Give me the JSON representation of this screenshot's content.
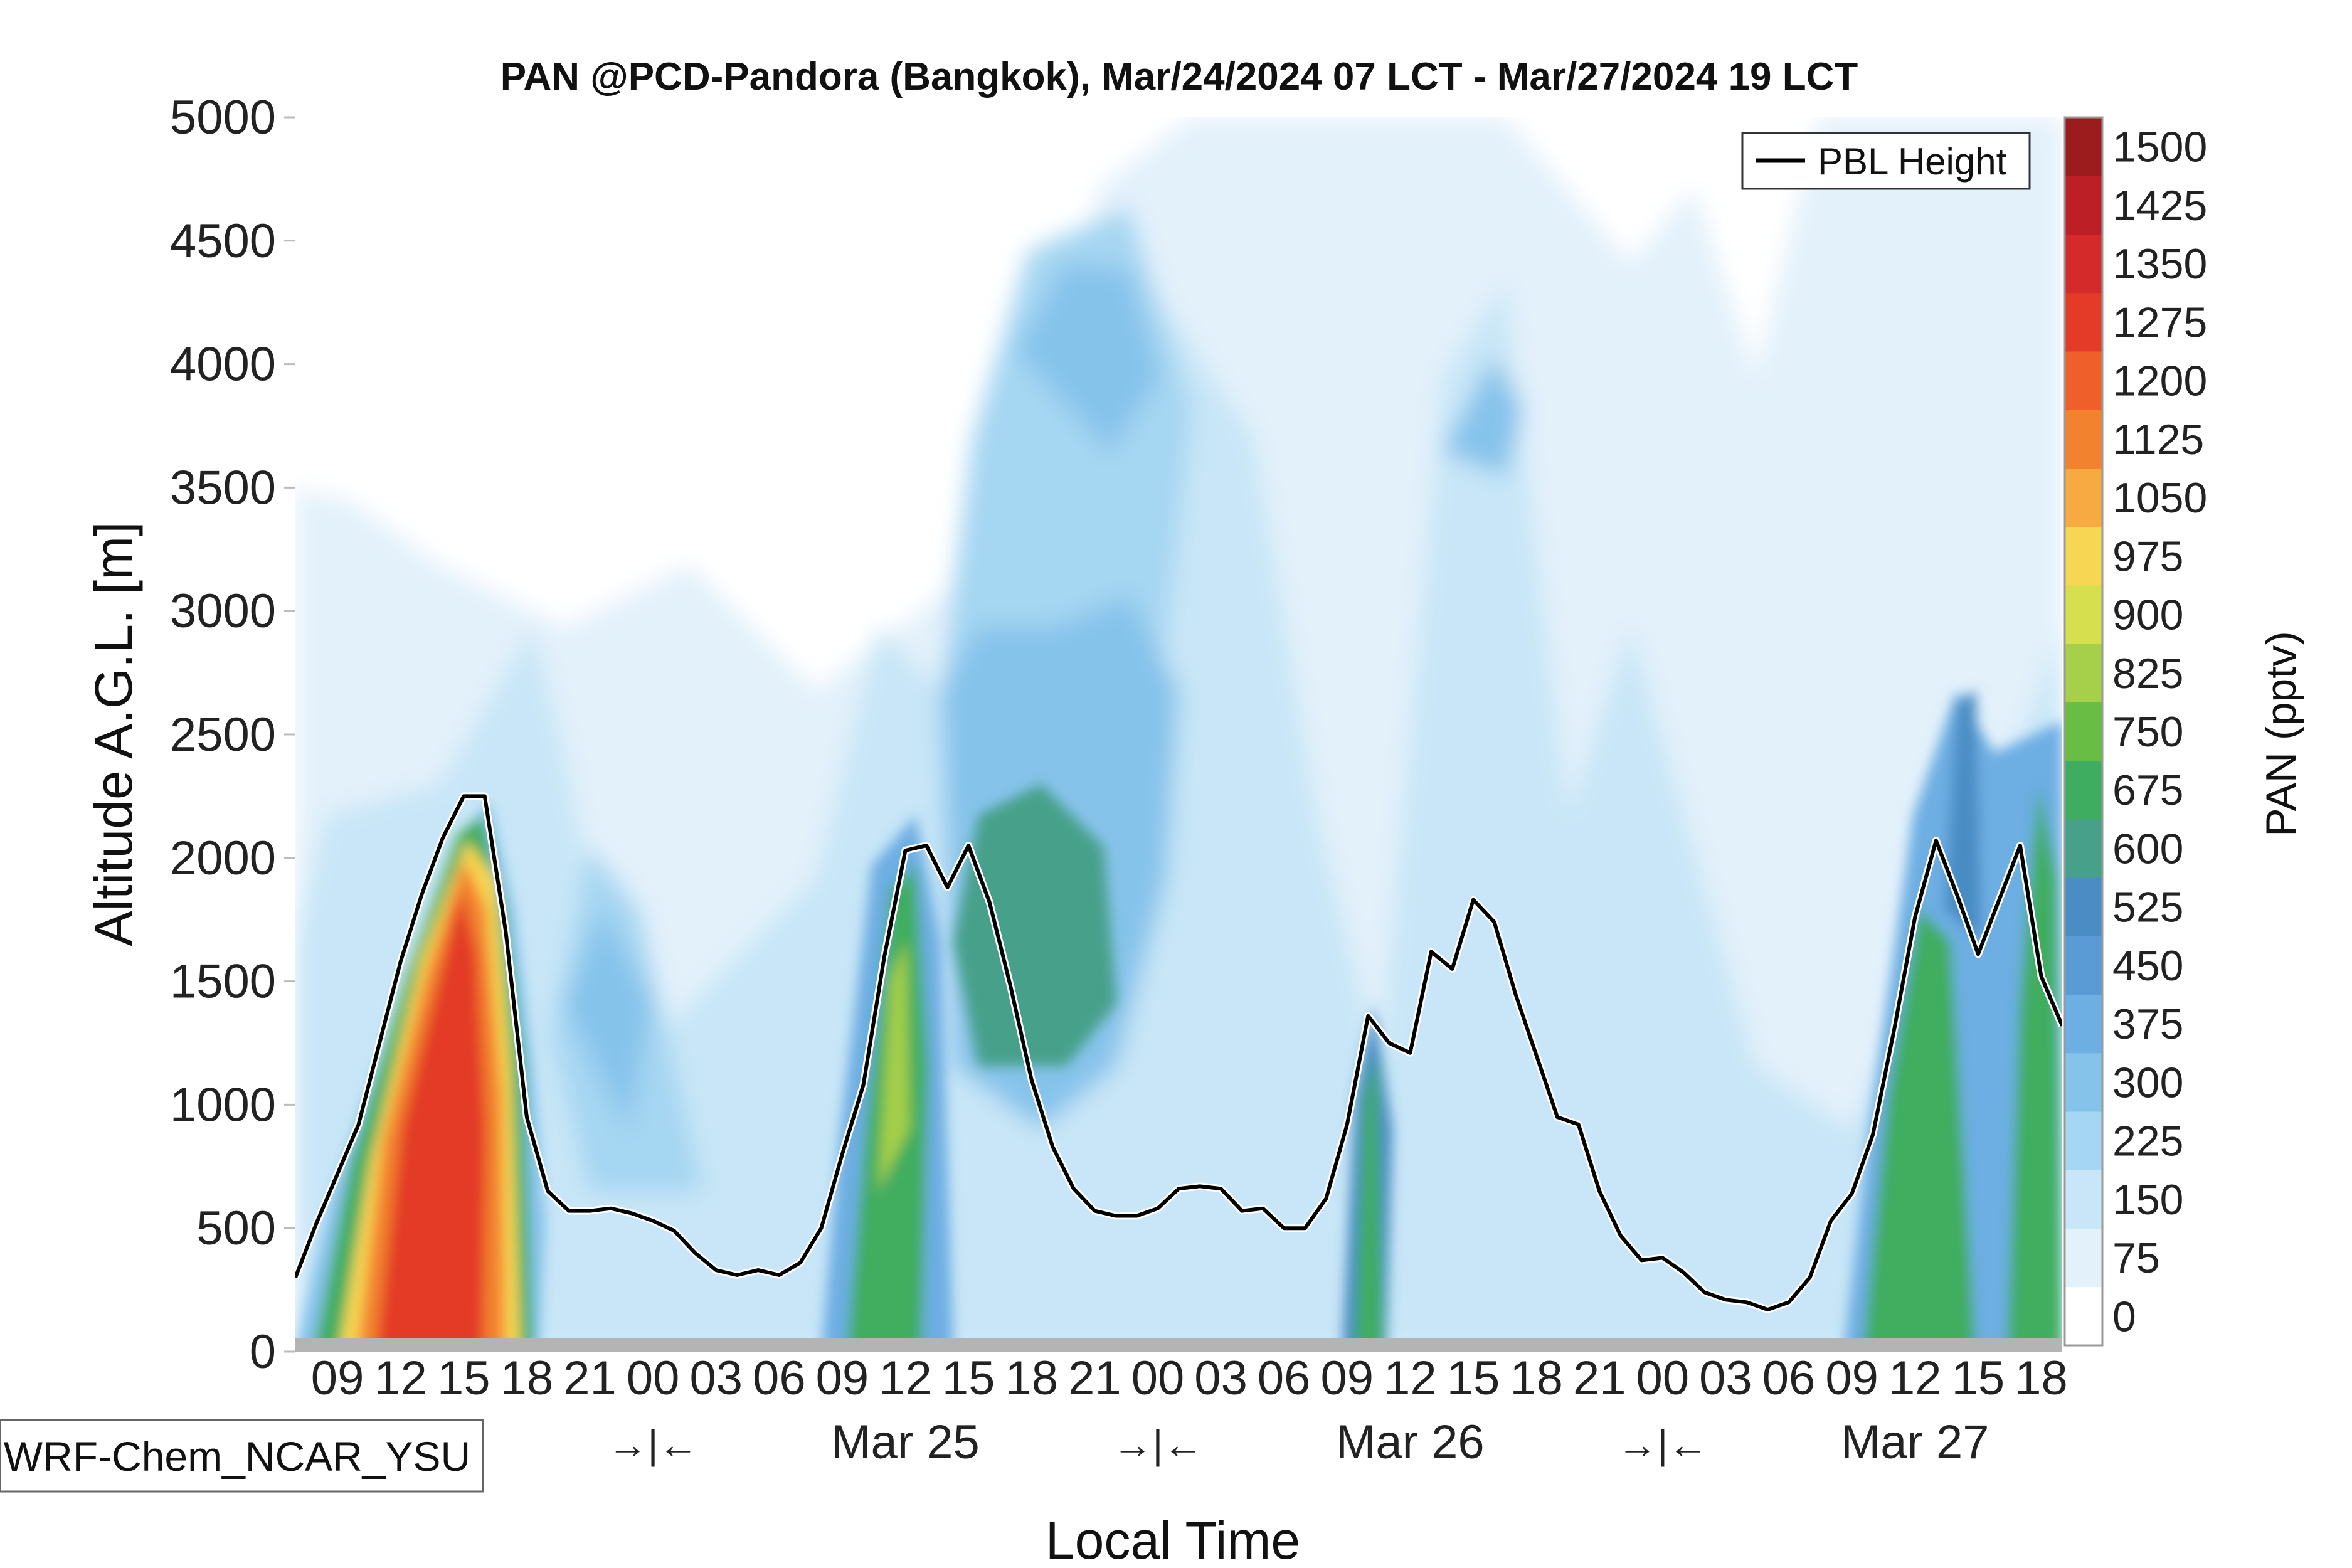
{
  "chart_data": {
    "type": "heatmap",
    "title": "PAN @PCD-Pandora (Bangkok), Mar/24/2024 07 LCT - Mar/27/2024 19 LCT",
    "xlabel": "Local Time",
    "ylabel": "Altitude A.G.L. [m]",
    "ylim": [
      0,
      5000
    ],
    "y_ticks": [
      "0",
      "500",
      "1000",
      "1500",
      "2000",
      "2500",
      "3000",
      "3500",
      "4000",
      "4500",
      "5000"
    ],
    "x_hour_ticks": [
      "09",
      "12",
      "15",
      "18",
      "21",
      "00",
      "03",
      "06",
      "09",
      "12",
      "15",
      "18",
      "21",
      "00",
      "03",
      "06",
      "09",
      "12",
      "15",
      "18",
      "21",
      "00",
      "03",
      "06",
      "09",
      "12",
      "15",
      "18"
    ],
    "x_day_labels": [
      "Mar 25",
      "Mar 26",
      "Mar 27"
    ],
    "night_markers": [
      "→|←",
      "→|←",
      "→|←"
    ],
    "colorbar": {
      "label": "PAN (pptv)",
      "levels": [
        "0",
        "75",
        "150",
        "225",
        "300",
        "375",
        "450",
        "525",
        "600",
        "675",
        "750",
        "825",
        "900",
        "975",
        "1050",
        "1125",
        "1200",
        "1275",
        "1350",
        "1425",
        "1500"
      ],
      "colors": [
        "#ffffff",
        "#e3f1fb",
        "#c8e6f7",
        "#a5d6f2",
        "#86c3eb",
        "#6daee3",
        "#5b9bd5",
        "#4a8cc4",
        "#46a08a",
        "#3fad5f",
        "#68bd45",
        "#a6cf4a",
        "#d6e04e",
        "#f7d653",
        "#f6aa41",
        "#f3822e",
        "#ef5f2a",
        "#e33b28",
        "#d42a2a",
        "#bc1f25",
        "#9c1b1d"
      ]
    },
    "legend": [
      "PBL Height"
    ],
    "legend_position": "top-right",
    "model_label": "WRF-Chem_NCAR_YSU",
    "pbl_height": {
      "x_hours": [
        7,
        8,
        9,
        10,
        11,
        12,
        13,
        14,
        15,
        16,
        17,
        18,
        19,
        20,
        21,
        22,
        23,
        24,
        25,
        26,
        27,
        28,
        29,
        30,
        31,
        32,
        33,
        34,
        35,
        36,
        37,
        38,
        39,
        40,
        41,
        42,
        43,
        44,
        45,
        46,
        47,
        48,
        49,
        50,
        51,
        52,
        53,
        54,
        55,
        56,
        57,
        58,
        59,
        60,
        61,
        62,
        63,
        64,
        65,
        66,
        67,
        68,
        69,
        70,
        71,
        72,
        73,
        74,
        75,
        76,
        77,
        78,
        79,
        80,
        81,
        82,
        83,
        84,
        85,
        86,
        87,
        88,
        89,
        90,
        91
      ],
      "y_m": [
        300,
        520,
        720,
        920,
        1250,
        1580,
        1850,
        2080,
        2250,
        2250,
        1700,
        950,
        650,
        570,
        570,
        580,
        560,
        530,
        490,
        400,
        330,
        310,
        330,
        310,
        360,
        500,
        800,
        1080,
        1600,
        2030,
        2050,
        1880,
        2050,
        1820,
        1480,
        1100,
        830,
        660,
        570,
        550,
        550,
        580,
        660,
        670,
        660,
        570,
        580,
        500,
        500,
        620,
        920,
        1360,
        1250,
        1210,
        1620,
        1550,
        1830,
        1740,
        1450,
        1200,
        950,
        920,
        650,
        470,
        370,
        380,
        320,
        240,
        210,
        200,
        170,
        200,
        300,
        530,
        640,
        880,
        1300,
        1760,
        2070,
        1850,
        1610,
        1830,
        2050,
        1520,
        1320
      ]
    }
  }
}
